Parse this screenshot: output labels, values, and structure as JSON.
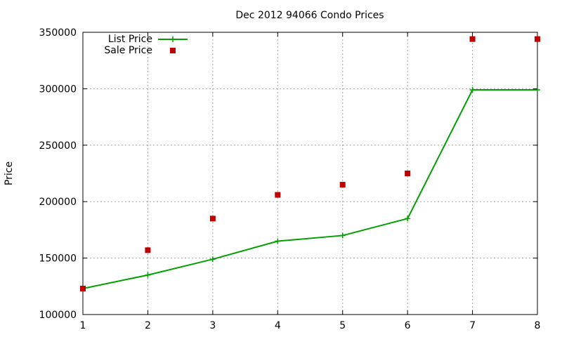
{
  "chart_data": {
    "type": "line",
    "title": "Dec 2012 94066 Condo Prices",
    "xlabel": "",
    "ylabel": "Price",
    "x": [
      1,
      2,
      3,
      4,
      5,
      6,
      7,
      8
    ],
    "xlim": [
      1,
      8
    ],
    "ylim": [
      100000,
      350000
    ],
    "xticks": [
      "1",
      "2",
      "3",
      "4",
      "5",
      "6",
      "7",
      "8"
    ],
    "yticks": [
      "100000",
      "150000",
      "200000",
      "250000",
      "300000",
      "350000"
    ],
    "grid": true,
    "legend_position": "top-left",
    "series": [
      {
        "name": "List Price",
        "style": "line-with-plus-markers",
        "color": "#00a000",
        "values": [
          123000,
          135000,
          149000,
          165000,
          170000,
          185000,
          299000,
          299000
        ]
      },
      {
        "name": "Sale Price",
        "style": "square-markers",
        "color": "#c00000",
        "values": [
          123000,
          157000,
          185000,
          206000,
          215000,
          225000,
          344000,
          344000
        ]
      }
    ]
  }
}
